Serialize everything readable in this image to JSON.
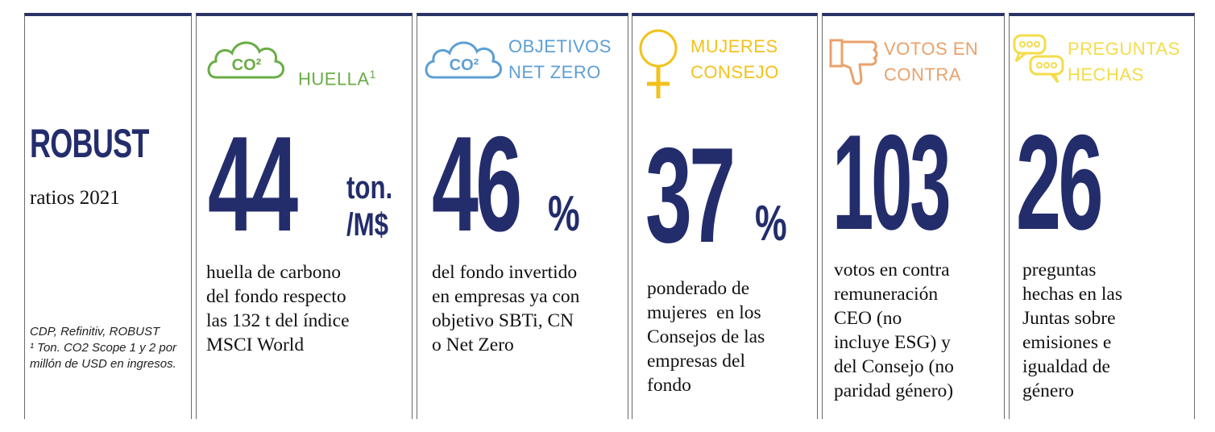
{
  "intro": {
    "brand": "ROBUST",
    "subtitle": "ratios 2021",
    "footnote": "CDP, Refinitiv, ROBUST\n¹ Ton. CO2 Scope 1 y 2 por millón de USD en ingresos."
  },
  "panels": [
    {
      "icon": "co2-cloud-icon",
      "icon_text": "CO²",
      "title_line1": "HUELLA",
      "title_sup": "1",
      "title_line2": "",
      "value": "44",
      "unit_line1": "ton.",
      "unit_line2": "/M$",
      "desc": [
        "huella de carbono",
        "del fondo respecto",
        "las 132 t del índice",
        "MSCI World"
      ],
      "color": "#6aac46"
    },
    {
      "icon": "co2-cloud-icon",
      "icon_text": "CO²",
      "title_line1": "OBJETIVOS",
      "title_line2": "NET ZERO",
      "value": "46",
      "unit": "%",
      "desc": [
        "del fondo invertido",
        "en empresas ya con",
        "objetivo SBTi, CN",
        "o Net Zero"
      ],
      "color": "#5d9fd4"
    },
    {
      "icon": "female-symbol-icon",
      "title_line1": "MUJERES",
      "title_line2": "CONSEJO",
      "value": "37",
      "unit": "%",
      "desc": [
        "ponderado de",
        "mujeres  en los",
        "Consejos de las",
        "empresas del",
        "fondo"
      ],
      "color": "#f2c21c"
    },
    {
      "icon": "thumbs-down-icon",
      "title_line1": "VOTOS EN",
      "title_line2": "CONTRA",
      "value": "103",
      "desc": [
        "votos en contra",
        "remuneración",
        "CEO (no",
        "incluye ESG) y",
        "del Consejo (no",
        "paridad género)"
      ],
      "color": "#e9a26b"
    },
    {
      "icon": "speech-bubbles-icon",
      "title_line1": "PREGUNTAS",
      "title_line2": "HECHAS",
      "value": "26",
      "desc": [
        "preguntas",
        "hechas en las",
        "Juntas sobre",
        "emisiones e",
        "igualdad de",
        "género"
      ],
      "color": "#f4dc4a"
    }
  ]
}
